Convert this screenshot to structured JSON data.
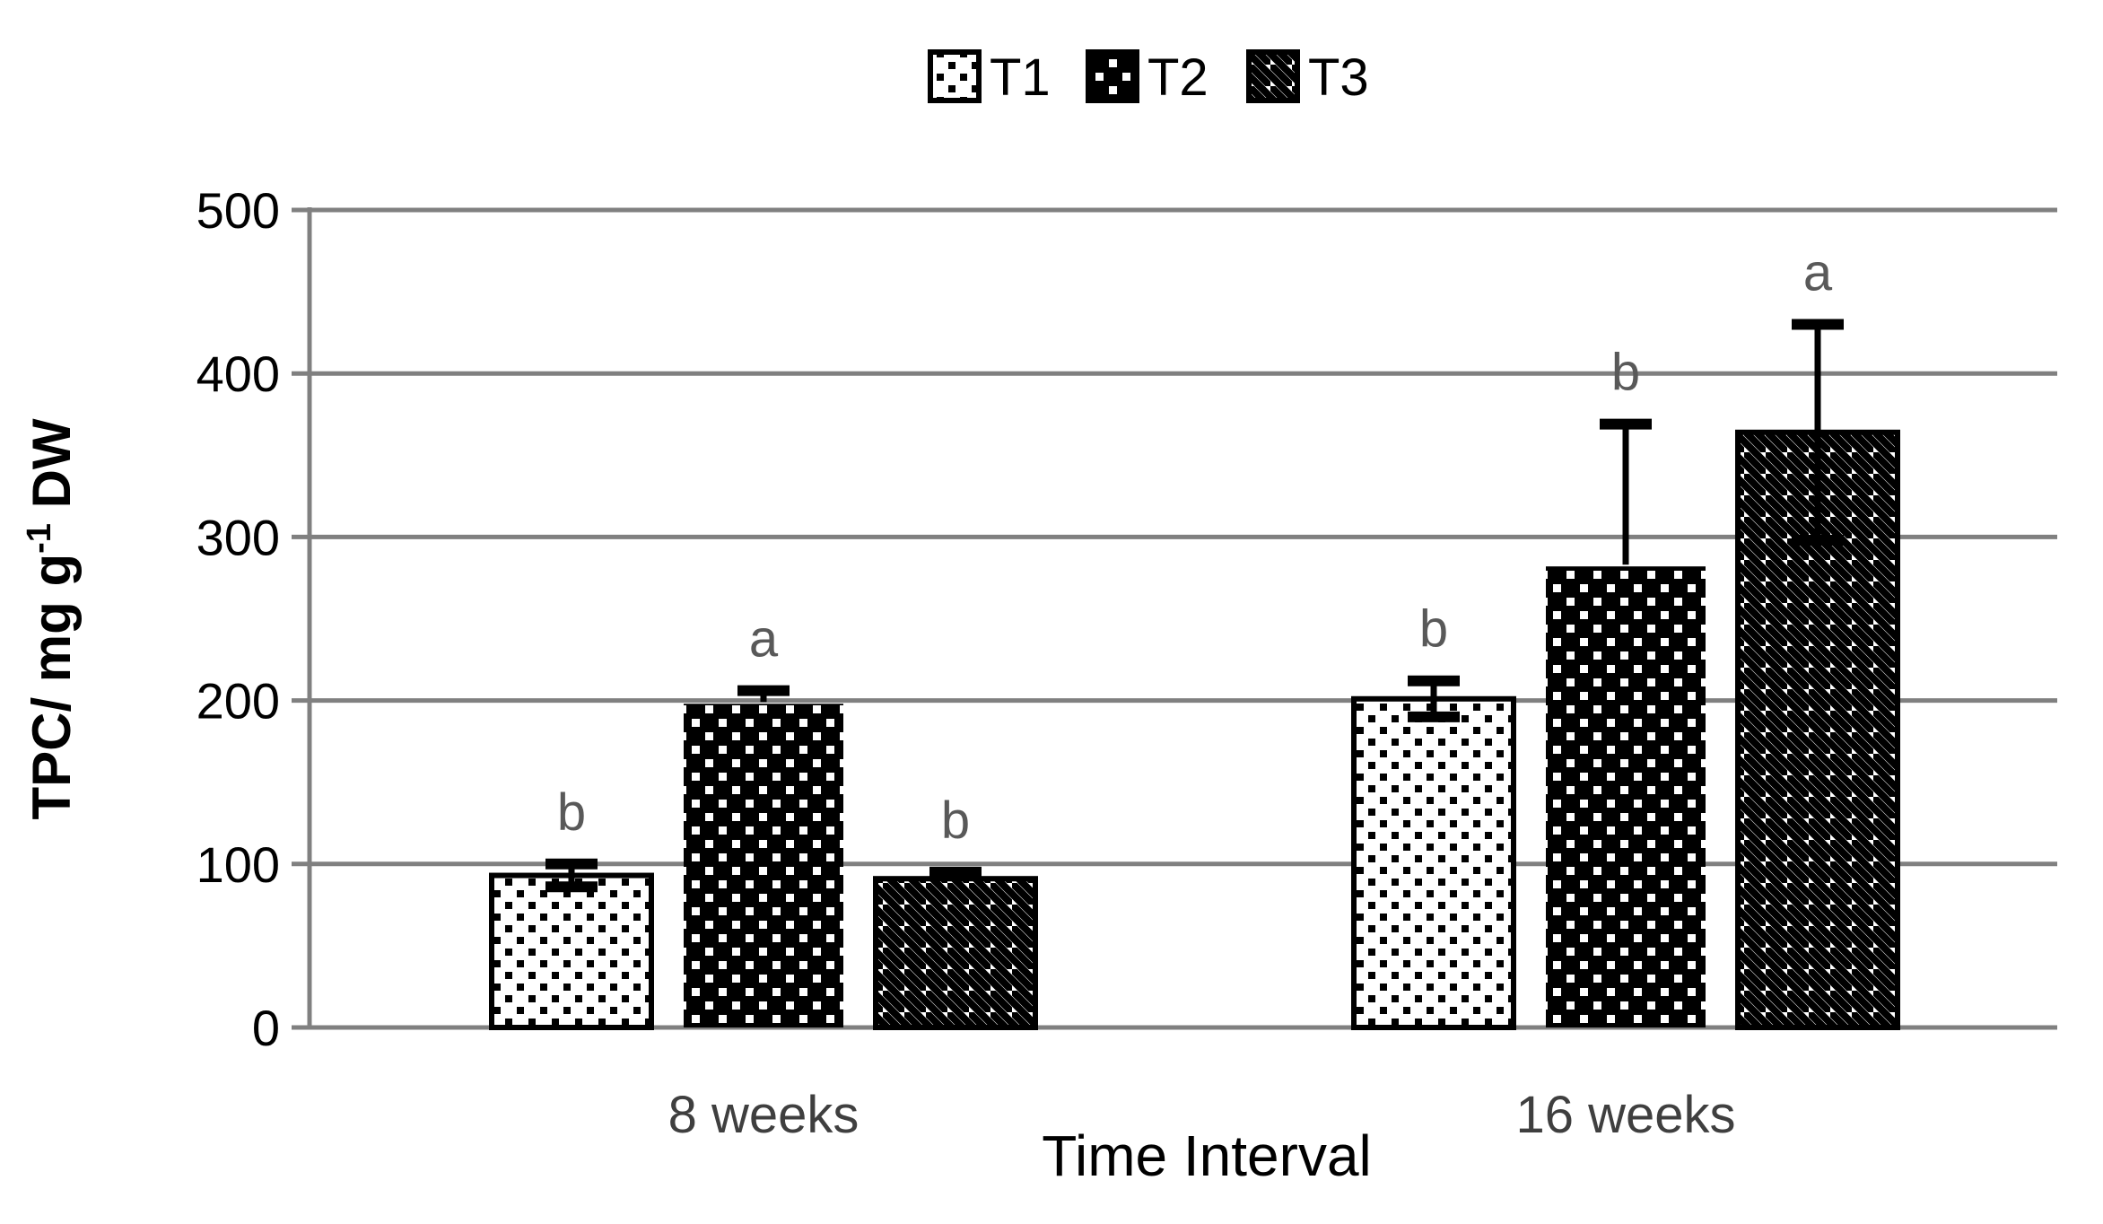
{
  "legend": {
    "items": [
      {
        "label": "T1",
        "pattern": "dots-light"
      },
      {
        "label": "T2",
        "pattern": "dots-dark"
      },
      {
        "label": "T3",
        "pattern": "diagonal-stripes"
      }
    ]
  },
  "y_axis": {
    "title": "TPC/ mg g⁻¹ DW",
    "title_main": "TPC/ mg g",
    "title_sup": "-1",
    "title_tail": " DW",
    "ticks": [
      0,
      100,
      200,
      300,
      400,
      500
    ]
  },
  "x_axis": {
    "title": "Time Interval",
    "categories": [
      "8 weeks",
      "16 weeks"
    ]
  },
  "colors": {
    "gridline": "#808080",
    "bar_outline": "#000000",
    "letter": "#595959",
    "category_label": "#3f3f3f",
    "tick_label": "#000000",
    "axis_title": "#000000"
  },
  "chart_data": {
    "type": "bar",
    "title": "",
    "xlabel": "Time Interval",
    "ylabel": "TPC/ mg g-1 DW",
    "ylim": [
      0,
      500
    ],
    "ytick_step": 100,
    "grid": true,
    "legend_position": "top-center",
    "categories": [
      "8 weeks",
      "16 weeks"
    ],
    "series": [
      {
        "name": "T1",
        "pattern": "dots-light",
        "values": [
          93,
          201
        ],
        "err_up": [
          7,
          11
        ],
        "err_down": [
          7,
          11
        ],
        "letters": [
          "b",
          "b"
        ]
      },
      {
        "name": "T2",
        "pattern": "dots-dark",
        "values": [
          198,
          282
        ],
        "err_up": [
          8,
          87
        ],
        "err_down": [
          null,
          null
        ],
        "letters": [
          "a",
          "b"
        ]
      },
      {
        "name": "T3",
        "pattern": "diagonal-stripes",
        "values": [
          91,
          364
        ],
        "err_up": [
          4,
          66
        ],
        "err_down": [
          null,
          66
        ],
        "letters": [
          "b",
          "a"
        ]
      }
    ]
  }
}
